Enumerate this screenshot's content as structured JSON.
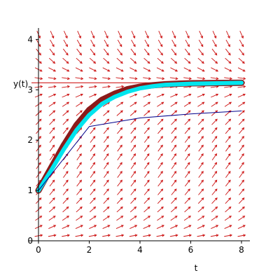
{
  "chart_data": {
    "type": "line",
    "title": "",
    "xlabel": "t",
    "ylabel": "y(t)",
    "xlim": [
      0,
      8
    ],
    "ylim": [
      0,
      4.2
    ],
    "x_ticks": [
      0,
      2,
      4,
      6,
      8
    ],
    "y_ticks": [
      0,
      1,
      2,
      3,
      4
    ],
    "grid": false,
    "legend": "none",
    "equilibrium": {
      "y": 3.14,
      "color": "#cc0000"
    },
    "direction_field": {
      "color": "#cc1111"
    },
    "series": [
      {
        "color": "#8b1a1a",
        "x": [
          0,
          0.5,
          1,
          1.5,
          2,
          2.5,
          3,
          3.5,
          4,
          4.5,
          5,
          6,
          7,
          8
        ],
        "y": [
          1.0,
          1.45,
          1.9,
          2.3,
          2.6,
          2.8,
          2.92,
          3.01,
          3.06,
          3.09,
          3.11,
          3.13,
          3.135,
          3.14
        ]
      },
      {
        "color": "#00e5ee",
        "x": [
          0,
          0.5,
          1,
          1.5,
          2,
          2.5,
          3,
          3.5,
          4,
          4.5,
          5,
          6,
          7,
          8
        ],
        "y": [
          1.0,
          1.4,
          1.82,
          2.2,
          2.5,
          2.72,
          2.86,
          2.96,
          3.03,
          3.07,
          3.1,
          3.12,
          3.13,
          3.14
        ]
      },
      {
        "color": "#00008b",
        "x": [
          0,
          2,
          4,
          6,
          8
        ],
        "y": [
          1.0,
          2.27,
          2.44,
          2.52,
          2.58
        ]
      }
    ]
  }
}
